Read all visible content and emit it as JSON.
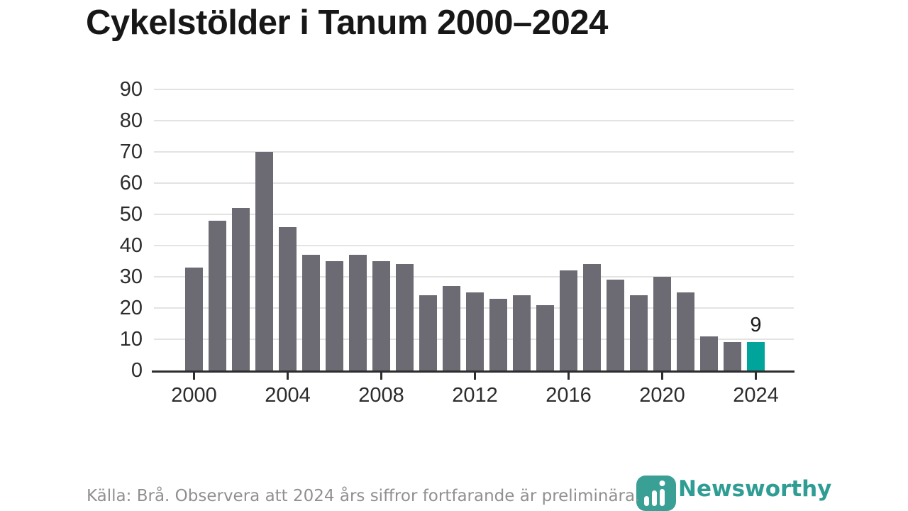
{
  "chart_data": {
    "type": "bar",
    "title": "Cykelstölder i Tanum 2000–2024",
    "categories": [
      2000,
      2001,
      2002,
      2003,
      2004,
      2005,
      2006,
      2007,
      2008,
      2009,
      2010,
      2011,
      2012,
      2013,
      2014,
      2015,
      2016,
      2017,
      2018,
      2019,
      2020,
      2021,
      2022,
      2023,
      2024
    ],
    "values": [
      33,
      48,
      52,
      70,
      46,
      37,
      35,
      37,
      35,
      34,
      24,
      27,
      25,
      23,
      24,
      21,
      32,
      34,
      29,
      24,
      30,
      25,
      11,
      9,
      9
    ],
    "xlabel": "",
    "ylabel": "",
    "ylim": [
      0,
      90
    ],
    "yticks": [
      0,
      10,
      20,
      30,
      40,
      50,
      60,
      70,
      80,
      90
    ],
    "xticks": [
      2000,
      2004,
      2008,
      2012,
      2016,
      2020,
      2024
    ],
    "grid": true,
    "legend": "none",
    "bar_color": "#6c6a72",
    "highlight_color": "#00a49a",
    "highlight_index": 24,
    "highlight_label": "9"
  },
  "footer": {
    "source_text": "Källa: Brå. Observera att 2024 års siffror fortfarande är preliminära."
  },
  "branding": {
    "logo_text": "Newsworthy",
    "logo_color": "#2f9d94",
    "icon_color": "#3a9f95"
  }
}
